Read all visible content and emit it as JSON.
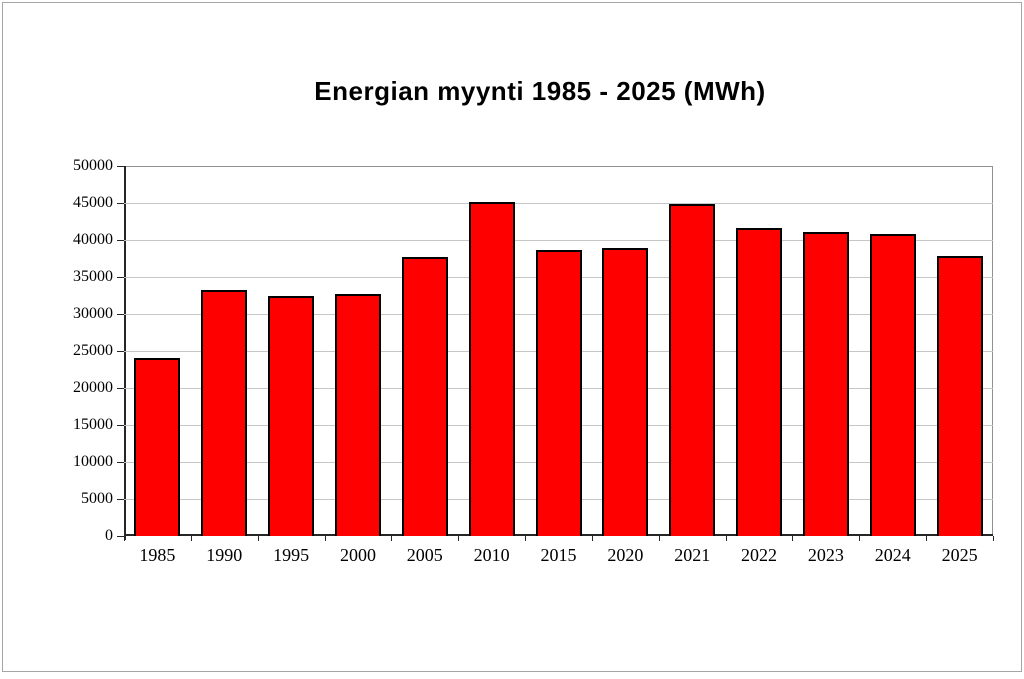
{
  "chart_data": {
    "type": "bar",
    "title": "Energian myynti 1985 - 2025 (MWh)",
    "categories": [
      "1985",
      "1990",
      "1995",
      "2000",
      "2005",
      "2010",
      "2015",
      "2020",
      "2021",
      "2022",
      "2023",
      "2024",
      "2025"
    ],
    "values": [
      24100,
      33200,
      32400,
      32700,
      37700,
      45100,
      38600,
      38900,
      44800,
      41600,
      41100,
      40800,
      37800
    ],
    "xlabel": "",
    "ylabel": "",
    "ylim": [
      0,
      50000
    ],
    "yticks": [
      0,
      5000,
      10000,
      15000,
      20000,
      25000,
      30000,
      35000,
      40000,
      45000,
      50000
    ],
    "grid": true,
    "legend_position": "none",
    "bar_fill_color": "#ff0000",
    "bar_border_color": "#000000",
    "gridline_color": "#c6c6c6",
    "plot_frame_color": "#909090",
    "axis_color": "#262626",
    "unit": "MWh"
  }
}
